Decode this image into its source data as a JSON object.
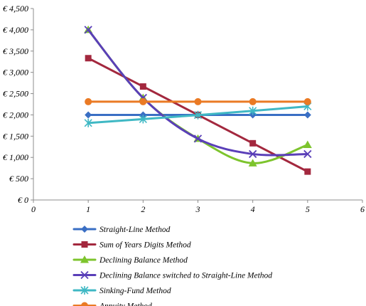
{
  "chart_data": {
    "type": "line",
    "x_axis": {
      "min": 0,
      "max": 6,
      "ticks": [
        0,
        1,
        2,
        3,
        4,
        5,
        6
      ],
      "tick_labels": [
        "0",
        "1",
        "2",
        "3",
        "4",
        "5",
        "6"
      ]
    },
    "y_axis": {
      "min": 0,
      "max": 4500,
      "ticks": [
        0,
        500,
        1000,
        1500,
        2000,
        2500,
        3000,
        3500,
        4000,
        4500
      ],
      "tick_labels": [
        "€ 0",
        "€ 500",
        "€ 1,000",
        "€ 1,500",
        "€ 2,000",
        "€ 2,500",
        "€ 3,000",
        "€ 3,500",
        "€ 4,000",
        "€ 4,500"
      ]
    },
    "grid": false,
    "legend_position": "bottom",
    "series": [
      {
        "name": "Straight-Line Method",
        "color": "#3a6fc4",
        "marker": "diamond",
        "smooth": false,
        "x": [
          1,
          2,
          3,
          4,
          5
        ],
        "y": [
          2000,
          2000,
          2000,
          2000,
          2000
        ]
      },
      {
        "name": "Sum of Years Digits Method",
        "color": "#a3283e",
        "marker": "square",
        "smooth": false,
        "x": [
          1,
          2,
          3,
          4,
          5
        ],
        "y": [
          3333,
          2667,
          2000,
          1333,
          667
        ]
      },
      {
        "name": "Declining Balance Method",
        "color": "#7dc42d",
        "marker": "triangle",
        "smooth": true,
        "x": [
          1,
          2,
          3,
          4,
          5
        ],
        "y": [
          4000,
          2400,
          1440,
          864,
          1296
        ]
      },
      {
        "name": "Declining Balance switched to Straight-Line Method",
        "color": "#5a3fb8",
        "marker": "x",
        "smooth": true,
        "x": [
          1,
          2,
          3,
          4,
          5
        ],
        "y": [
          4000,
          2400,
          1440,
          1080,
          1080
        ]
      },
      {
        "name": "Sinking-Fund Method",
        "color": "#3fb8c4",
        "marker": "star",
        "smooth": false,
        "x": [
          1,
          2,
          3,
          4,
          5
        ],
        "y": [
          1810,
          1900,
          1995,
          2095,
          2200
        ]
      },
      {
        "name": "Annuity Method",
        "color": "#ea7a24",
        "marker": "circle",
        "smooth": false,
        "x": [
          1,
          2,
          3,
          4,
          5
        ],
        "y": [
          2310,
          2310,
          2310,
          2310,
          2310
        ]
      }
    ]
  }
}
